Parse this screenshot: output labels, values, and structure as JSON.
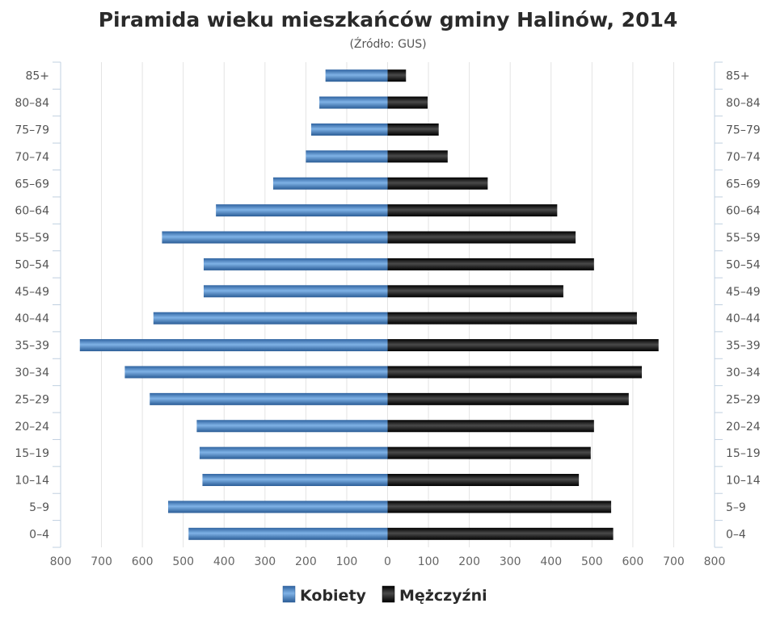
{
  "chart_data": {
    "type": "bar",
    "orientation": "horizontal-population-pyramid",
    "title": "Piramida wieku mieszkańców gminy Halinów, 2014",
    "subtitle": "(Źródło: GUS)",
    "categories": [
      "0–4",
      "5–9",
      "10–14",
      "15–19",
      "20–24",
      "25–29",
      "30–34",
      "35–39",
      "40–44",
      "45–49",
      "50–54",
      "55–59",
      "60–64",
      "65–69",
      "70–74",
      "75–79",
      "80–84",
      "85+"
    ],
    "series": [
      {
        "name": "Kobiety",
        "side": "left",
        "color": "#4a86c8",
        "values": [
          487,
          537,
          453,
          460,
          467,
          582,
          643,
          753,
          573,
          450,
          450,
          552,
          420,
          280,
          200,
          187,
          167,
          152
        ]
      },
      {
        "name": "Mężczyźni",
        "side": "right",
        "color": "#1a1a1a",
        "values": [
          552,
          547,
          468,
          497,
          505,
          590,
          622,
          663,
          610,
          430,
          505,
          460,
          415,
          245,
          147,
          125,
          98,
          45
        ]
      }
    ],
    "xlim": [
      -800,
      800
    ],
    "xticks": [
      "800",
      "700",
      "600",
      "500",
      "400",
      "300",
      "200",
      "100",
      "0",
      "100",
      "200",
      "300",
      "400",
      "500",
      "600",
      "700",
      "800"
    ],
    "grid": true,
    "legend_position": "bottom-center"
  }
}
